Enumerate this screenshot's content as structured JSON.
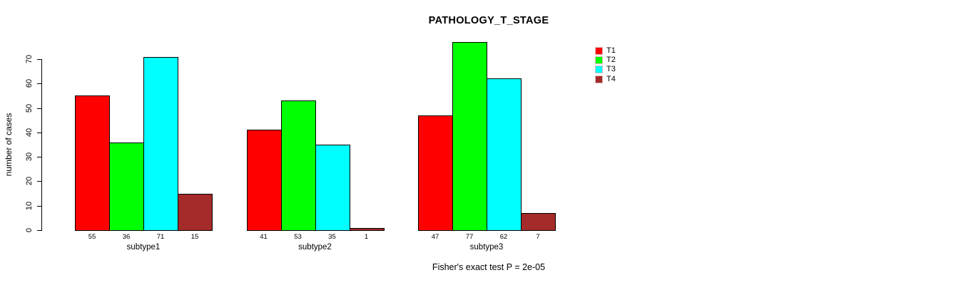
{
  "title": "PATHOLOGY_T_STAGE",
  "y_axis_label": "number of cases",
  "footer_note": "Fisher's exact test P = 2e-05",
  "chart_data": {
    "type": "bar",
    "title": "PATHOLOGY_T_STAGE",
    "xlabel": "",
    "ylabel": "number of cases",
    "categories": [
      "subtype1",
      "subtype2",
      "subtype3"
    ],
    "series": [
      {
        "name": "T1",
        "color": "#ff0000",
        "values": [
          55,
          41,
          47
        ]
      },
      {
        "name": "T2",
        "color": "#00ff00",
        "values": [
          36,
          53,
          77
        ]
      },
      {
        "name": "T3",
        "color": "#00ffff",
        "values": [
          71,
          35,
          62
        ]
      },
      {
        "name": "T4",
        "color": "#a52a2a",
        "values": [
          15,
          1,
          7
        ]
      }
    ],
    "yticks": [
      0,
      10,
      20,
      30,
      40,
      50,
      60,
      70
    ],
    "ylim": [
      0,
      72
    ],
    "grid": false,
    "bar_value_labels_shown": true,
    "legend_position": "right",
    "legend_entries": [
      "T1",
      "T2",
      "T3",
      "T4"
    ],
    "annotation": "Fisher's exact test P = 2e-05"
  }
}
